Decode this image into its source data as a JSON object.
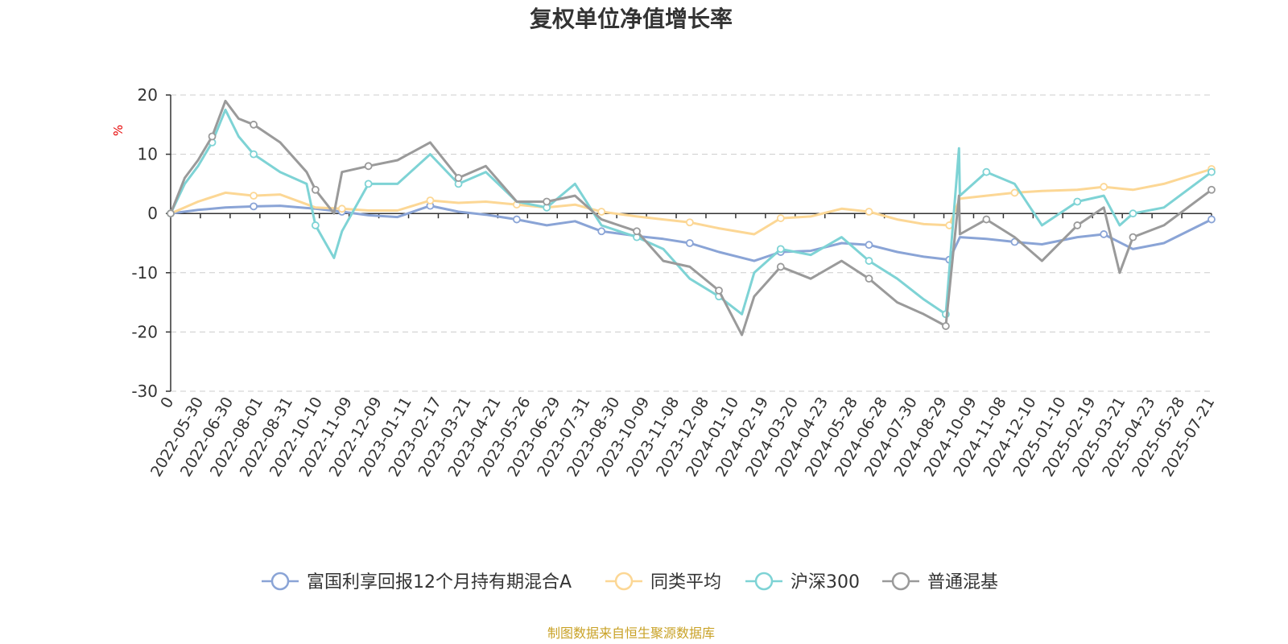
{
  "chart_data": {
    "type": "line",
    "title": "复权单位净值增长率",
    "ylabel": "%",
    "ylim": [
      -30,
      20
    ],
    "yticks": [
      "20",
      "10",
      "0",
      "-10",
      "-20",
      "-30"
    ],
    "xlim": [
      "2022-04-29",
      "2025-07-21"
    ],
    "xticks": [
      "0",
      "2022-05-30",
      "2022-06-30",
      "2022-08-01",
      "2022-08-31",
      "2022-10-10",
      "2022-11-09",
      "2022-12-09",
      "2023-01-11",
      "2023-02-17",
      "2023-03-21",
      "2023-04-21",
      "2023-05-26",
      "2023-06-29",
      "2023-07-31",
      "2023-08-30",
      "2023-10-09",
      "2023-11-08",
      "2023-12-08",
      "2024-01-10",
      "2024-02-19",
      "2024-03-20",
      "2024-04-23",
      "2024-05-28",
      "2024-06-28",
      "2024-07-30",
      "2024-08-29",
      "2024-10-09",
      "2024-11-08",
      "2024-12-10",
      "2025-01-10",
      "2025-02-19",
      "2025-03-21",
      "2025-04-23",
      "2025-05-28",
      "2025-07-21"
    ],
    "grid": true,
    "legend_position": "bottom",
    "series": [
      {
        "name": "富国利享回报12个月持有期混合A",
        "color": "#8aa4d6",
        "points": [
          [
            "2022-04-29",
            0
          ],
          [
            "2022-05-30",
            0.6
          ],
          [
            "2022-06-30",
            1.0
          ],
          [
            "2022-08-01",
            1.2
          ],
          [
            "2022-08-31",
            1.3
          ],
          [
            "2022-10-10",
            0.8
          ],
          [
            "2022-11-09",
            0.3
          ],
          [
            "2022-12-09",
            -0.3
          ],
          [
            "2023-01-11",
            -0.6
          ],
          [
            "2023-02-17",
            1.3
          ],
          [
            "2023-03-21",
            0.3
          ],
          [
            "2023-04-21",
            -0.2
          ],
          [
            "2023-05-26",
            -1.0
          ],
          [
            "2023-06-29",
            -2.0
          ],
          [
            "2023-07-31",
            -1.3
          ],
          [
            "2023-08-30",
            -3.0
          ],
          [
            "2023-10-09",
            -3.8
          ],
          [
            "2023-11-08",
            -4.3
          ],
          [
            "2023-12-08",
            -5.0
          ],
          [
            "2024-01-10",
            -6.5
          ],
          [
            "2024-02-19",
            -8.0
          ],
          [
            "2024-03-20",
            -6.5
          ],
          [
            "2024-04-23",
            -6.3
          ],
          [
            "2024-05-28",
            -5.0
          ],
          [
            "2024-06-28",
            -5.3
          ],
          [
            "2024-07-30",
            -6.5
          ],
          [
            "2024-08-29",
            -7.3
          ],
          [
            "2024-09-27",
            -7.8
          ],
          [
            "2024-10-09",
            -4.0
          ],
          [
            "2024-11-08",
            -4.3
          ],
          [
            "2024-12-10",
            -4.8
          ],
          [
            "2025-01-10",
            -5.2
          ],
          [
            "2025-02-19",
            -4.0
          ],
          [
            "2025-03-21",
            -3.5
          ],
          [
            "2025-04-23",
            -6.0
          ],
          [
            "2025-05-28",
            -5.0
          ],
          [
            "2025-07-21",
            -1.0
          ]
        ]
      },
      {
        "name": "同类平均",
        "color": "#fcd795",
        "points": [
          [
            "2022-04-29",
            0
          ],
          [
            "2022-05-30",
            2.0
          ],
          [
            "2022-06-30",
            3.5
          ],
          [
            "2022-08-01",
            3.0
          ],
          [
            "2022-08-31",
            3.2
          ],
          [
            "2022-10-10",
            1.0
          ],
          [
            "2022-11-09",
            0.8
          ],
          [
            "2022-12-09",
            0.5
          ],
          [
            "2023-01-11",
            0.5
          ],
          [
            "2023-02-17",
            2.2
          ],
          [
            "2023-03-21",
            1.8
          ],
          [
            "2023-04-21",
            2.0
          ],
          [
            "2023-05-26",
            1.5
          ],
          [
            "2023-06-29",
            1.0
          ],
          [
            "2023-07-31",
            1.5
          ],
          [
            "2023-08-30",
            0.3
          ],
          [
            "2023-10-09",
            -0.5
          ],
          [
            "2023-11-08",
            -1.0
          ],
          [
            "2023-12-08",
            -1.5
          ],
          [
            "2024-01-10",
            -2.5
          ],
          [
            "2024-02-19",
            -3.5
          ],
          [
            "2024-03-20",
            -0.8
          ],
          [
            "2024-04-23",
            -0.5
          ],
          [
            "2024-05-28",
            0.8
          ],
          [
            "2024-06-28",
            0.3
          ],
          [
            "2024-07-30",
            -1.0
          ],
          [
            "2024-08-29",
            -1.8
          ],
          [
            "2024-09-27",
            -2.0
          ],
          [
            "2024-10-09",
            2.5
          ],
          [
            "2024-11-08",
            3.0
          ],
          [
            "2024-12-10",
            3.5
          ],
          [
            "2025-01-10",
            3.8
          ],
          [
            "2025-02-19",
            4.0
          ],
          [
            "2025-03-21",
            4.5
          ],
          [
            "2025-04-23",
            4.0
          ],
          [
            "2025-05-28",
            5.0
          ],
          [
            "2025-07-21",
            7.5
          ]
        ]
      },
      {
        "name": "沪深300",
        "color": "#7ed3d5",
        "points": [
          [
            "2022-04-29",
            0
          ],
          [
            "2022-05-15",
            5.0
          ],
          [
            "2022-05-30",
            8.0
          ],
          [
            "2022-06-15",
            12.0
          ],
          [
            "2022-06-30",
            17.5
          ],
          [
            "2022-07-15",
            13.0
          ],
          [
            "2022-08-01",
            10.0
          ],
          [
            "2022-08-31",
            7.0
          ],
          [
            "2022-09-30",
            5.0
          ],
          [
            "2022-10-10",
            -2.0
          ],
          [
            "2022-10-31",
            -7.5
          ],
          [
            "2022-11-09",
            -3.0
          ],
          [
            "2022-12-09",
            5.0
          ],
          [
            "2023-01-11",
            5.0
          ],
          [
            "2023-02-17",
            10.0
          ],
          [
            "2023-03-21",
            5.0
          ],
          [
            "2023-04-21",
            7.0
          ],
          [
            "2023-05-26",
            2.0
          ],
          [
            "2023-06-29",
            1.0
          ],
          [
            "2023-07-31",
            5.0
          ],
          [
            "2023-08-30",
            -2.0
          ],
          [
            "2023-10-09",
            -4.0
          ],
          [
            "2023-11-08",
            -6.0
          ],
          [
            "2023-12-08",
            -11.0
          ],
          [
            "2024-01-10",
            -14.0
          ],
          [
            "2024-02-05",
            -17.0
          ],
          [
            "2024-02-19",
            -10.0
          ],
          [
            "2024-03-20",
            -6.0
          ],
          [
            "2024-04-23",
            -7.0
          ],
          [
            "2024-05-28",
            -4.0
          ],
          [
            "2024-06-28",
            -8.0
          ],
          [
            "2024-07-30",
            -11.0
          ],
          [
            "2024-08-29",
            -14.5
          ],
          [
            "2024-09-23",
            -17.0
          ],
          [
            "2024-10-08",
            11.0
          ],
          [
            "2024-10-09",
            3.0
          ],
          [
            "2024-11-08",
            7.0
          ],
          [
            "2024-12-10",
            5.0
          ],
          [
            "2025-01-10",
            -2.0
          ],
          [
            "2025-02-19",
            2.0
          ],
          [
            "2025-03-21",
            3.0
          ],
          [
            "2025-04-08",
            -2.0
          ],
          [
            "2025-04-23",
            0.0
          ],
          [
            "2025-05-28",
            1.0
          ],
          [
            "2025-07-21",
            7.0
          ]
        ]
      },
      {
        "name": "普通混基",
        "color": "#9a9a9a",
        "points": [
          [
            "2022-04-29",
            0
          ],
          [
            "2022-05-15",
            6.0
          ],
          [
            "2022-05-30",
            9.0
          ],
          [
            "2022-06-15",
            13.0
          ],
          [
            "2022-06-30",
            19.0
          ],
          [
            "2022-07-15",
            16.0
          ],
          [
            "2022-08-01",
            15.0
          ],
          [
            "2022-08-31",
            12.0
          ],
          [
            "2022-09-30",
            7.0
          ],
          [
            "2022-10-10",
            4.0
          ],
          [
            "2022-10-31",
            0.0
          ],
          [
            "2022-11-09",
            7.0
          ],
          [
            "2022-12-09",
            8.0
          ],
          [
            "2023-01-11",
            9.0
          ],
          [
            "2023-02-17",
            12.0
          ],
          [
            "2023-03-21",
            6.0
          ],
          [
            "2023-04-21",
            8.0
          ],
          [
            "2023-05-26",
            2.0
          ],
          [
            "2023-06-29",
            2.0
          ],
          [
            "2023-07-31",
            3.0
          ],
          [
            "2023-08-30",
            -1.0
          ],
          [
            "2023-10-09",
            -3.0
          ],
          [
            "2023-11-08",
            -8.0
          ],
          [
            "2023-12-08",
            -9.0
          ],
          [
            "2024-01-10",
            -13.0
          ],
          [
            "2024-02-05",
            -20.5
          ],
          [
            "2024-02-19",
            -14.0
          ],
          [
            "2024-03-20",
            -9.0
          ],
          [
            "2024-04-23",
            -11.0
          ],
          [
            "2024-05-28",
            -8.0
          ],
          [
            "2024-06-28",
            -11.0
          ],
          [
            "2024-07-30",
            -15.0
          ],
          [
            "2024-08-29",
            -17.0
          ],
          [
            "2024-09-23",
            -19.0
          ],
          [
            "2024-10-08",
            3.0
          ],
          [
            "2024-10-09",
            -3.5
          ],
          [
            "2024-11-08",
            -1.0
          ],
          [
            "2024-12-10",
            -4.0
          ],
          [
            "2025-01-10",
            -8.0
          ],
          [
            "2025-02-19",
            -2.0
          ],
          [
            "2025-03-21",
            1.0
          ],
          [
            "2025-04-08",
            -10.0
          ],
          [
            "2025-04-23",
            -4.0
          ],
          [
            "2025-05-28",
            -2.0
          ],
          [
            "2025-07-21",
            4.0
          ]
        ]
      }
    ]
  },
  "footer": {
    "source": "制图数据来自恒生聚源数据库"
  }
}
